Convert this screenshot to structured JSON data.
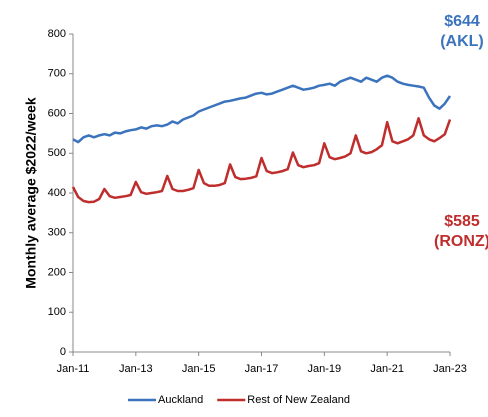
{
  "chart_data": {
    "type": "line",
    "y_label": "Monthly average $2022/week",
    "x": [
      2011,
      2011.167,
      2011.333,
      2011.5,
      2011.667,
      2011.833,
      2012,
      2012.167,
      2012.333,
      2012.5,
      2012.667,
      2012.833,
      2013,
      2013.167,
      2013.333,
      2013.5,
      2013.667,
      2013.833,
      2014,
      2014.167,
      2014.333,
      2014.5,
      2014.667,
      2014.833,
      2015,
      2015.167,
      2015.333,
      2015.5,
      2015.667,
      2015.833,
      2016,
      2016.167,
      2016.333,
      2016.5,
      2016.667,
      2016.833,
      2017,
      2017.167,
      2017.333,
      2017.5,
      2017.667,
      2017.833,
      2018,
      2018.167,
      2018.333,
      2018.5,
      2018.667,
      2018.833,
      2019,
      2019.167,
      2019.333,
      2019.5,
      2019.667,
      2019.833,
      2020,
      2020.167,
      2020.333,
      2020.5,
      2020.667,
      2020.833,
      2021,
      2021.167,
      2021.333,
      2021.5,
      2021.667,
      2021.833,
      2022,
      2022.167,
      2022.333,
      2022.5,
      2022.667,
      2022.833,
      2023
    ],
    "series": [
      {
        "name": "Auckland",
        "color": "#3b74bd",
        "values": [
          535,
          528,
          540,
          545,
          540,
          545,
          548,
          545,
          552,
          550,
          555,
          558,
          560,
          565,
          562,
          568,
          570,
          568,
          572,
          580,
          575,
          585,
          590,
          595,
          605,
          610,
          615,
          620,
          625,
          630,
          632,
          635,
          638,
          640,
          645,
          650,
          652,
          648,
          650,
          655,
          660,
          665,
          670,
          665,
          660,
          662,
          665,
          670,
          672,
          675,
          670,
          680,
          685,
          690,
          685,
          680,
          690,
          685,
          680,
          690,
          695,
          690,
          680,
          675,
          672,
          670,
          668,
          665,
          640,
          620,
          612,
          625,
          644
        ]
      },
      {
        "name": "Rest of New Zealand",
        "color": "#bf2d2d",
        "values": [
          415,
          390,
          380,
          377,
          378,
          385,
          410,
          392,
          388,
          390,
          392,
          395,
          428,
          402,
          398,
          400,
          402,
          405,
          443,
          410,
          405,
          405,
          408,
          412,
          458,
          425,
          418,
          418,
          420,
          425,
          472,
          440,
          435,
          436,
          438,
          442,
          488,
          455,
          450,
          452,
          455,
          460,
          502,
          470,
          465,
          468,
          470,
          475,
          525,
          490,
          485,
          488,
          492,
          500,
          545,
          505,
          500,
          503,
          510,
          520,
          578,
          530,
          525,
          530,
          535,
          545,
          588,
          545,
          535,
          530,
          538,
          548,
          585
        ]
      }
    ],
    "xlim": [
      2011,
      2023
    ],
    "xticks": [
      {
        "value": 2011,
        "label": "Jan-11"
      },
      {
        "value": 2013,
        "label": "Jan-13"
      },
      {
        "value": 2015,
        "label": "Jan-15"
      },
      {
        "value": 2017,
        "label": "Jan-17"
      },
      {
        "value": 2019,
        "label": "Jan-19"
      },
      {
        "value": 2021,
        "label": "Jan-21"
      },
      {
        "value": 2023,
        "label": "Jan-23"
      }
    ],
    "ylim": [
      0,
      800
    ],
    "yticks": [
      0,
      100,
      200,
      300,
      400,
      500,
      600,
      700,
      800
    ],
    "legend": "bottom",
    "annotations": [
      {
        "lines": [
          "$644",
          "(AKL)"
        ],
        "color": "#3b74bd"
      },
      {
        "lines": [
          "$585",
          "(RONZ)"
        ],
        "color": "#bf2d2d"
      }
    ]
  }
}
